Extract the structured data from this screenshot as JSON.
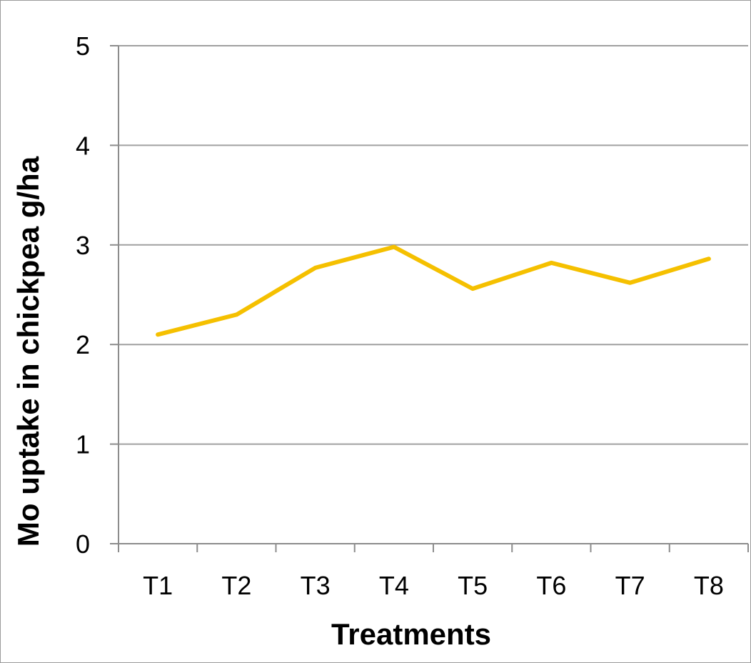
{
  "chart_data": {
    "type": "line",
    "title": "",
    "xlabel": "Treatments",
    "ylabel": "Mo uptake in chickpea  g/ha",
    "categories": [
      "T1",
      "T2",
      "T3",
      "T4",
      "T5",
      "T6",
      "T7",
      "T8"
    ],
    "series": [
      {
        "values": [
          2.1,
          2.3,
          2.77,
          2.98,
          2.56,
          2.82,
          2.62,
          2.86
        ]
      }
    ],
    "ylim": [
      0,
      5
    ],
    "yticks": [
      "0",
      "1",
      "2",
      "3",
      "4",
      "5"
    ],
    "grid": true,
    "legend": "none",
    "colors": {
      "line": "#f5c000",
      "grid": "#a0a0a0",
      "axis": "#8c8c8c"
    }
  }
}
